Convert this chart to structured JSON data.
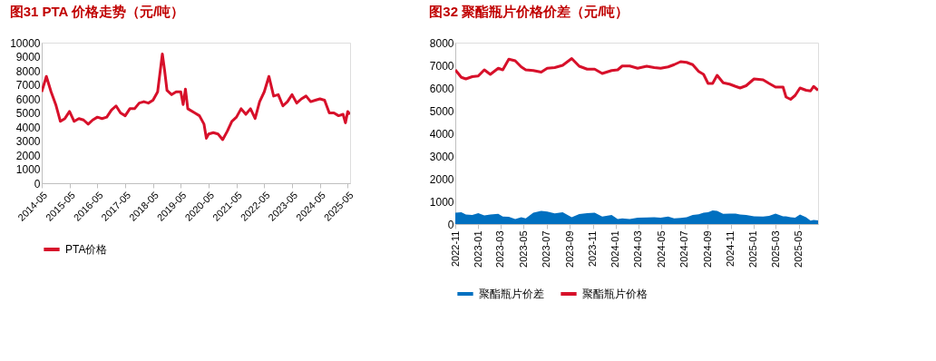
{
  "chart_data": [
    {
      "type": "line",
      "title": "图31  PTA 价格走势（元/吨）",
      "x": [
        "2014-05",
        "2014-07",
        "2014-09",
        "2014-11",
        "2015-01",
        "2015-03",
        "2015-05",
        "2015-07",
        "2015-09",
        "2015-11",
        "2016-01",
        "2016-03",
        "2016-05",
        "2016-07",
        "2016-09",
        "2016-11",
        "2017-01",
        "2017-03",
        "2017-05",
        "2017-07",
        "2017-09",
        "2017-11",
        "2018-01",
        "2018-03",
        "2018-05",
        "2018-07",
        "2018-09",
        "2018-10",
        "2018-11",
        "2019-01",
        "2019-03",
        "2019-05",
        "2019-06",
        "2019-07",
        "2019-08",
        "2019-11",
        "2020-01",
        "2020-03",
        "2020-04",
        "2020-05",
        "2020-07",
        "2020-09",
        "2020-11",
        "2021-01",
        "2021-03",
        "2021-05",
        "2021-07",
        "2021-09",
        "2021-11",
        "2022-01",
        "2022-03",
        "2022-05",
        "2022-07",
        "2022-09",
        "2022-11",
        "2023-01",
        "2023-03",
        "2023-05",
        "2023-07",
        "2023-09",
        "2023-11",
        "2024-01",
        "2024-03",
        "2024-05",
        "2024-07",
        "2024-09",
        "2024-11",
        "2025-01",
        "2025-03",
        "2025-04",
        "2025-05",
        "2025-06"
      ],
      "series": [
        {
          "name": "PTA价格",
          "color": "#d7102a",
          "values": [
            6500,
            7600,
            6500,
            5600,
            4400,
            4600,
            5100,
            4400,
            4600,
            4500,
            4200,
            4500,
            4700,
            4600,
            4700,
            5200,
            5500,
            5000,
            4800,
            5300,
            5300,
            5700,
            5800,
            5700,
            5900,
            6500,
            9200,
            8000,
            6600,
            6300,
            6500,
            6500,
            5600,
            6700,
            5300,
            5000,
            4800,
            4200,
            3200,
            3500,
            3600,
            3500,
            3100,
            3700,
            4400,
            4700,
            5300,
            4900,
            5300,
            4600,
            5800,
            6500,
            7600,
            6200,
            6300,
            5500,
            5800,
            6300,
            5700,
            6000,
            6200,
            5800,
            5900,
            6000,
            5900,
            5000,
            5000,
            4800,
            4900,
            4300,
            5100,
            4900
          ]
        }
      ],
      "xlim": [
        "2014-05",
        "2025-06"
      ],
      "xticks": [
        "2014-05",
        "2015-05",
        "2016-05",
        "2017-05",
        "2018-05",
        "2019-05",
        "2020-05",
        "2021-05",
        "2022-05",
        "2023-05",
        "2024-05",
        "2025-05"
      ],
      "ylim": [
        0,
        10000
      ],
      "yticks": [
        0,
        1000,
        2000,
        3000,
        4000,
        5000,
        6000,
        7000,
        8000,
        9000,
        10000
      ],
      "grid": false,
      "legend": "bottom"
    },
    {
      "type": "line",
      "title": "图32  聚酯瓶片价格价差（元/吨）",
      "x": [
        "2022-11-01",
        "2022-11-17",
        "2022-11-29",
        "2022-12-16",
        "2023-01-01",
        "2023-01-17",
        "2023-02-02",
        "2023-02-23",
        "2023-03-07",
        "2023-03-23",
        "2023-04-09",
        "2023-04-25",
        "2023-05-07",
        "2023-05-27",
        "2023-06-17",
        "2023-07-03",
        "2023-07-23",
        "2023-08-13",
        "2023-09-06",
        "2023-09-26",
        "2023-10-17",
        "2023-11-06",
        "2023-11-26",
        "2023-12-21",
        "2024-01-06",
        "2024-01-18",
        "2024-02-07",
        "2024-02-28",
        "2024-03-23",
        "2024-04-12",
        "2024-04-29",
        "2024-05-19",
        "2024-06-04",
        "2024-06-21",
        "2024-07-07",
        "2024-07-23",
        "2024-08-08",
        "2024-08-21",
        "2024-09-02",
        "2024-09-14",
        "2024-09-26",
        "2024-10-12",
        "2024-10-29",
        "2024-11-14",
        "2024-11-26",
        "2024-12-12",
        "2025-01-02",
        "2025-01-26",
        "2025-02-11",
        "2025-02-28",
        "2025-03-20",
        "2025-03-28",
        "2025-04-09",
        "2025-04-21",
        "2025-05-04",
        "2025-05-20",
        "2025-06-01",
        "2025-06-09",
        "2025-06-21"
      ],
      "series": [
        {
          "name": "聚酯瓶片价差",
          "type": "area",
          "color": "#0070c0",
          "values": [
            500,
            520,
            420,
            400,
            480,
            380,
            420,
            450,
            330,
            320,
            220,
            300,
            250,
            500,
            580,
            550,
            470,
            520,
            300,
            440,
            480,
            500,
            330,
            400,
            220,
            250,
            220,
            280,
            290,
            300,
            280,
            330,
            250,
            270,
            300,
            400,
            430,
            500,
            520,
            600,
            580,
            450,
            460,
            460,
            420,
            400,
            340,
            330,
            360,
            460,
            340,
            340,
            300,
            280,
            420,
            300,
            150,
            180,
            160
          ]
        },
        {
          "name": "聚酯瓶片价格",
          "type": "line",
          "color": "#d7102a",
          "values": [
            6800,
            6470,
            6400,
            6500,
            6530,
            6800,
            6600,
            6870,
            6800,
            7270,
            7200,
            6930,
            6800,
            6770,
            6700,
            6870,
            6900,
            7000,
            7300,
            6960,
            6830,
            6830,
            6640,
            6770,
            6800,
            6970,
            6970,
            6870,
            6960,
            6900,
            6870,
            6930,
            7030,
            7160,
            7130,
            7030,
            6730,
            6600,
            6200,
            6200,
            6560,
            6230,
            6170,
            6070,
            6000,
            6100,
            6400,
            6360,
            6200,
            6040,
            6040,
            5600,
            5500,
            5670,
            6000,
            5900,
            5870,
            6070,
            5900
          ]
        }
      ],
      "xlim": [
        "2022-11-01",
        "2025-06-21"
      ],
      "xticks": [
        "2022-11",
        "2023-01",
        "2023-03",
        "2023-05",
        "2023-07",
        "2023-09",
        "2023-11",
        "2024-01",
        "2024-03",
        "2024-05",
        "2024-07",
        "2024-09",
        "2024-11",
        "2025-01",
        "2025-03",
        "2025-05"
      ],
      "ylim": [
        0,
        8000
      ],
      "yticks": [
        0,
        1000,
        2000,
        3000,
        4000,
        5000,
        6000,
        7000,
        8000
      ],
      "grid": false,
      "legend": "bottom"
    }
  ]
}
